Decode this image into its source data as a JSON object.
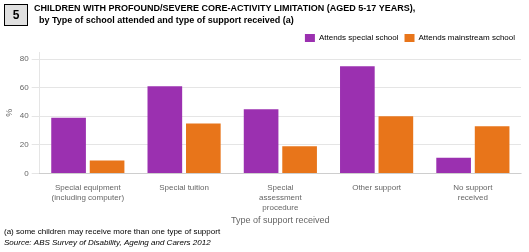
{
  "chart_data": {
    "type": "bar",
    "title": "CHILDREN WITH PROFOUND/SEVERE CORE-ACTIVITY LIMITATION (AGED 5-17 YEARS),",
    "subtitle": "  by Type of school attended and type of support received (a)",
    "annotations": [
      "5",
      "(a) some children may receive more than one type of support",
      "Source: ABS Survey of Disability, Ageing and Carers 2012"
    ],
    "categories": [
      "Special equipment\n(including computer)",
      "Special tuition",
      "Special\nassessment\nprocedure",
      "Other support",
      "No support\nreceived"
    ],
    "series": [
      {
        "name": "Attends special school",
        "color": "#9B30B0",
        "values": [
          39,
          61,
          45,
          75,
          11
        ]
      },
      {
        "name": "Attends mainstream school",
        "color": "#E8751A",
        "values": [
          9,
          35,
          19,
          40,
          33
        ]
      }
    ],
    "xlabel": "Type of support received",
    "ylabel": "%",
    "ylim": [
      0,
      85
    ],
    "yticks": [
      0,
      20,
      40,
      60,
      80
    ],
    "grid": true,
    "legend": "upper right"
  }
}
